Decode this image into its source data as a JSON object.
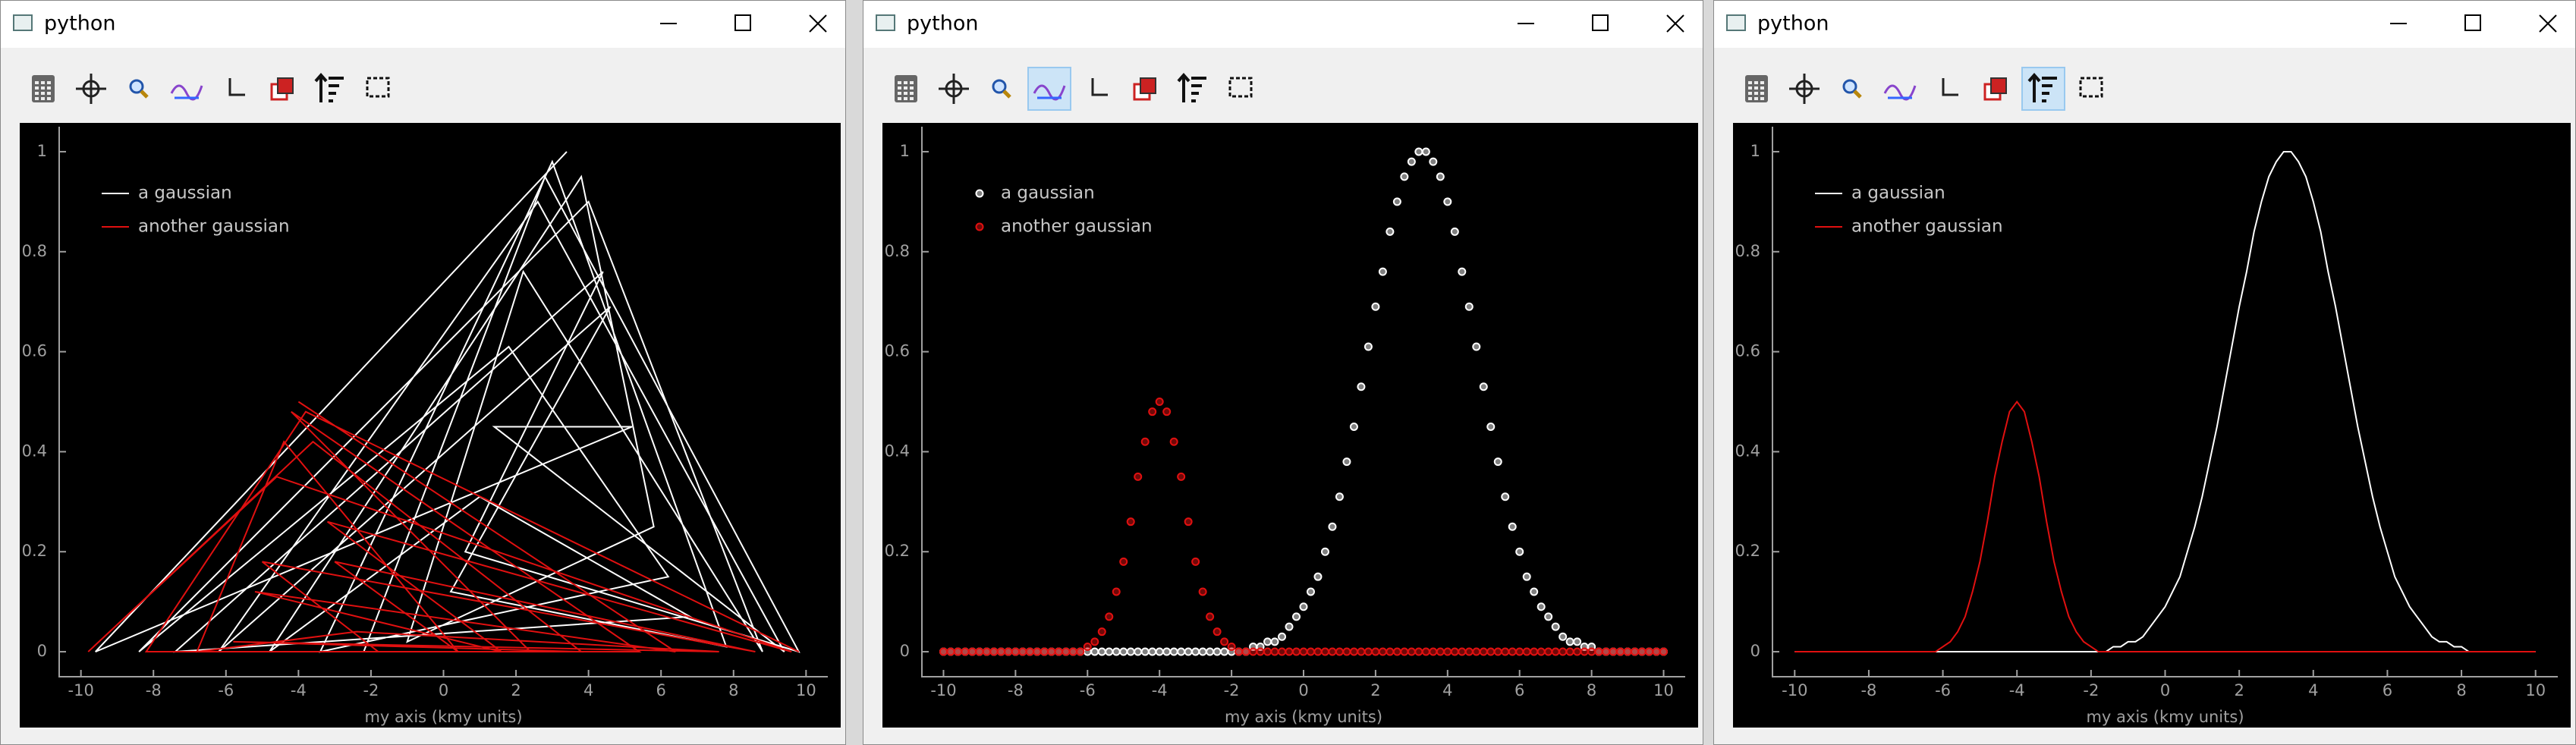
{
  "windows": [
    {
      "title": "python"
    },
    {
      "title": "python"
    },
    {
      "title": "python"
    }
  ],
  "chart_data": [
    {
      "type": "line",
      "xlabel": "my axis (kmy units)",
      "legend": "upper left",
      "xlim": [
        -10.6,
        10.6
      ],
      "ylim": [
        -0.05,
        1.05
      ],
      "xticks": [
        -10,
        -8,
        -6,
        -4,
        -2,
        0,
        2,
        4,
        6,
        8,
        10
      ],
      "yticks": [
        0,
        0.2,
        0.4,
        0.6,
        0.8,
        1
      ],
      "series": [
        {
          "name": "a gaussian",
          "color": "#ffffff",
          "x": [
            3.4,
            -9.6,
            5.2,
            1.4,
            9.4,
            2.6,
            -6.2,
            4.6,
            0.2,
            7.8,
            3.0,
            -3.4,
            6.2,
            1.8,
            -8.4,
            4.0,
            8.8,
            2.2,
            -1.0,
            5.8,
            3.8,
            -4.8,
            1.0,
            6.8,
            -7.4,
            4.4,
            0.6,
            9.8,
            2.8,
            -2.2
          ],
          "values": [
            1.0,
            0,
            0.45,
            0.45,
            0,
            0.9,
            0,
            0.69,
            0.12,
            0.01,
            0.98,
            0,
            0.15,
            0.61,
            0,
            0.9,
            0,
            0.76,
            0.02,
            0.25,
            0.95,
            0,
            0.31,
            0.07,
            0,
            0.76,
            0.2,
            0,
            0.95,
            0
          ]
        },
        {
          "name": "another gaussian",
          "color": "#e01010",
          "x": [
            -4.0,
            6.4,
            -5.2,
            1.6,
            -3.2,
            9.6,
            -4.6,
            -9.8,
            -3.6,
            3.8,
            -5.8,
            7.6,
            -2.4,
            -6.8,
            -4.4,
            0.4,
            -3.0,
            8.6,
            -5.0,
            -1.8,
            2.4,
            -4.2,
            5.4,
            -8.2,
            -3.8,
            9.8
          ],
          "values": [
            0.5,
            0,
            0.12,
            0,
            0.26,
            0,
            0.35,
            0,
            0.42,
            0,
            0.02,
            0,
            0.04,
            0,
            0.42,
            0,
            0.18,
            0,
            0.18,
            0,
            0,
            0.48,
            0,
            0,
            0.48,
            0
          ]
        }
      ]
    },
    {
      "type": "scatter",
      "xlabel": "my axis (kmy units)",
      "legend": "upper left",
      "xlim": [
        -10.6,
        10.6
      ],
      "ylim": [
        -0.05,
        1.05
      ],
      "xticks": [
        -10,
        -8,
        -6,
        -4,
        -2,
        0,
        2,
        4,
        6,
        8,
        10
      ],
      "yticks": [
        0,
        0.2,
        0.4,
        0.6,
        0.8,
        1
      ],
      "x": [
        -10,
        -9.8,
        -9.6,
        -9.4,
        -9.2,
        -9,
        -8.8,
        -8.6,
        -8.4,
        -8.2,
        -8,
        -7.8,
        -7.6,
        -7.4,
        -7.2,
        -7,
        -6.8,
        -6.6,
        -6.4,
        -6.2,
        -6,
        -5.8,
        -5.6,
        -5.4,
        -5.2,
        -5,
        -4.8,
        -4.6,
        -4.4,
        -4.2,
        -4,
        -3.8,
        -3.6,
        -3.4,
        -3.2,
        -3,
        -2.8,
        -2.6,
        -2.4,
        -2.2,
        -2,
        -1.8,
        -1.6,
        -1.4,
        -1.2,
        -1,
        -0.8,
        -0.6,
        -0.4,
        -0.2,
        0,
        0.2,
        0.4,
        0.6,
        0.8,
        1,
        1.2,
        1.4,
        1.6,
        1.8,
        2,
        2.2,
        2.4,
        2.6,
        2.8,
        3,
        3.2,
        3.4,
        3.6,
        3.8,
        4,
        4.2,
        4.4,
        4.6,
        4.8,
        5,
        5.2,
        5.4,
        5.6,
        5.8,
        6,
        6.2,
        6.4,
        6.6,
        6.8,
        7,
        7.2,
        7.4,
        7.6,
        7.8,
        8,
        8.2,
        8.4,
        8.6,
        8.8,
        9,
        9.2,
        9.4,
        9.6,
        9.8,
        10
      ],
      "series": [
        {
          "name": "a gaussian",
          "color": "#ffffff",
          "values": [
            0,
            0,
            0,
            0,
            0,
            0,
            0,
            0,
            0,
            0,
            0,
            0,
            0,
            0,
            0,
            0,
            0,
            0,
            0,
            0,
            0,
            0,
            0,
            0,
            0,
            0,
            0,
            0,
            0,
            0,
            0,
            0,
            0,
            0,
            0,
            0,
            0,
            0,
            0,
            0,
            0,
            0,
            0,
            0.01,
            0.01,
            0.02,
            0.02,
            0.03,
            0.05,
            0.07,
            0.09,
            0.12,
            0.15,
            0.2,
            0.25,
            0.31,
            0.38,
            0.45,
            0.53,
            0.61,
            0.69,
            0.76,
            0.84,
            0.9,
            0.95,
            0.98,
            1.0,
            1.0,
            0.98,
            0.95,
            0.9,
            0.84,
            0.76,
            0.69,
            0.61,
            0.53,
            0.45,
            0.38,
            0.31,
            0.25,
            0.2,
            0.15,
            0.12,
            0.09,
            0.07,
            0.05,
            0.03,
            0.02,
            0.02,
            0.01,
            0.01,
            0,
            0,
            0,
            0,
            0,
            0,
            0,
            0,
            0,
            0
          ]
        },
        {
          "name": "another gaussian",
          "color": "#e01010",
          "values": [
            0,
            0,
            0,
            0,
            0,
            0,
            0,
            0,
            0,
            0,
            0,
            0,
            0,
            0,
            0,
            0,
            0,
            0,
            0,
            0,
            0.01,
            0.02,
            0.04,
            0.07,
            0.12,
            0.18,
            0.26,
            0.35,
            0.42,
            0.48,
            0.5,
            0.48,
            0.42,
            0.35,
            0.26,
            0.18,
            0.12,
            0.07,
            0.04,
            0.02,
            0.01,
            0,
            0,
            0,
            0,
            0,
            0,
            0,
            0,
            0,
            0,
            0,
            0,
            0,
            0,
            0,
            0,
            0,
            0,
            0,
            0,
            0,
            0,
            0,
            0,
            0,
            0,
            0,
            0,
            0,
            0,
            0,
            0,
            0,
            0,
            0,
            0,
            0,
            0,
            0,
            0,
            0,
            0,
            0,
            0,
            0,
            0,
            0,
            0,
            0,
            0,
            0,
            0,
            0,
            0,
            0,
            0,
            0,
            0,
            0,
            0
          ]
        }
      ]
    },
    {
      "type": "line",
      "xlabel": "my axis (kmy units)",
      "legend": "upper left",
      "xlim": [
        -10.6,
        10.6
      ],
      "ylim": [
        -0.05,
        1.05
      ],
      "xticks": [
        -10,
        -8,
        -6,
        -4,
        -2,
        0,
        2,
        4,
        6,
        8,
        10
      ],
      "yticks": [
        0,
        0.2,
        0.4,
        0.6,
        0.8,
        1
      ],
      "x": [
        -10,
        -9.8,
        -9.6,
        -9.4,
        -9.2,
        -9,
        -8.8,
        -8.6,
        -8.4,
        -8.2,
        -8,
        -7.8,
        -7.6,
        -7.4,
        -7.2,
        -7,
        -6.8,
        -6.6,
        -6.4,
        -6.2,
        -6,
        -5.8,
        -5.6,
        -5.4,
        -5.2,
        -5,
        -4.8,
        -4.6,
        -4.4,
        -4.2,
        -4,
        -3.8,
        -3.6,
        -3.4,
        -3.2,
        -3,
        -2.8,
        -2.6,
        -2.4,
        -2.2,
        -2,
        -1.8,
        -1.6,
        -1.4,
        -1.2,
        -1,
        -0.8,
        -0.6,
        -0.4,
        -0.2,
        0,
        0.2,
        0.4,
        0.6,
        0.8,
        1,
        1.2,
        1.4,
        1.6,
        1.8,
        2,
        2.2,
        2.4,
        2.6,
        2.8,
        3,
        3.2,
        3.4,
        3.6,
        3.8,
        4,
        4.2,
        4.4,
        4.6,
        4.8,
        5,
        5.2,
        5.4,
        5.6,
        5.8,
        6,
        6.2,
        6.4,
        6.6,
        6.8,
        7,
        7.2,
        7.4,
        7.6,
        7.8,
        8,
        8.2,
        8.4,
        8.6,
        8.8,
        9,
        9.2,
        9.4,
        9.6,
        9.8,
        10
      ],
      "series": [
        {
          "name": "a gaussian",
          "color": "#ffffff",
          "values": [
            0,
            0,
            0,
            0,
            0,
            0,
            0,
            0,
            0,
            0,
            0,
            0,
            0,
            0,
            0,
            0,
            0,
            0,
            0,
            0,
            0,
            0,
            0,
            0,
            0,
            0,
            0,
            0,
            0,
            0,
            0,
            0,
            0,
            0,
            0,
            0,
            0,
            0,
            0,
            0,
            0,
            0,
            0,
            0.01,
            0.01,
            0.02,
            0.02,
            0.03,
            0.05,
            0.07,
            0.09,
            0.12,
            0.15,
            0.2,
            0.25,
            0.31,
            0.38,
            0.45,
            0.53,
            0.61,
            0.69,
            0.76,
            0.84,
            0.9,
            0.95,
            0.98,
            1.0,
            1.0,
            0.98,
            0.95,
            0.9,
            0.84,
            0.76,
            0.69,
            0.61,
            0.53,
            0.45,
            0.38,
            0.31,
            0.25,
            0.2,
            0.15,
            0.12,
            0.09,
            0.07,
            0.05,
            0.03,
            0.02,
            0.02,
            0.01,
            0.01,
            0,
            0,
            0,
            0,
            0,
            0,
            0,
            0,
            0,
            0
          ]
        },
        {
          "name": "another gaussian",
          "color": "#e01010",
          "values": [
            0,
            0,
            0,
            0,
            0,
            0,
            0,
            0,
            0,
            0,
            0,
            0,
            0,
            0,
            0,
            0,
            0,
            0,
            0,
            0,
            0.01,
            0.02,
            0.04,
            0.07,
            0.12,
            0.18,
            0.26,
            0.35,
            0.42,
            0.48,
            0.5,
            0.48,
            0.42,
            0.35,
            0.26,
            0.18,
            0.12,
            0.07,
            0.04,
            0.02,
            0.01,
            0,
            0,
            0,
            0,
            0,
            0,
            0,
            0,
            0,
            0,
            0,
            0,
            0,
            0,
            0,
            0,
            0,
            0,
            0,
            0,
            0,
            0,
            0,
            0,
            0,
            0,
            0,
            0,
            0,
            0,
            0,
            0,
            0,
            0,
            0,
            0,
            0,
            0,
            0,
            0,
            0,
            0,
            0,
            0,
            0,
            0,
            0,
            0,
            0,
            0,
            0,
            0,
            0,
            0,
            0,
            0,
            0,
            0,
            0,
            0
          ]
        }
      ]
    }
  ]
}
